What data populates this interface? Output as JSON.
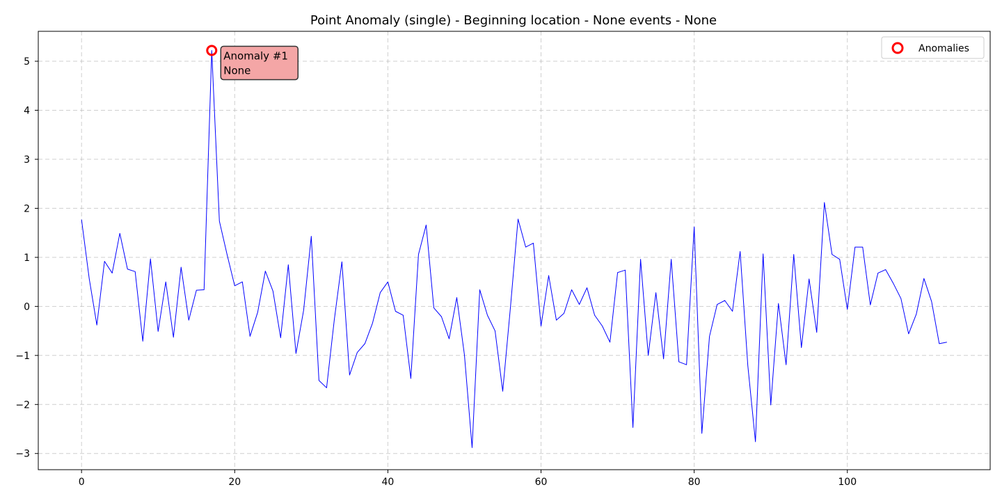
{
  "chart_data": {
    "type": "line",
    "title": "Point Anomaly (single) - Beginning location - None events - None",
    "xlabel": "",
    "ylabel": "",
    "xlim": [
      -5.65,
      118.65
    ],
    "ylim": [
      -3.33,
      5.61
    ],
    "x_ticks": [
      0,
      20,
      40,
      60,
      80,
      100
    ],
    "y_ticks": [
      -3,
      -2,
      -1,
      0,
      1,
      2,
      3,
      4,
      5
    ],
    "grid": true,
    "legend": {
      "placement": "top-right",
      "entries": [
        "Anomalies"
      ]
    },
    "series": [
      {
        "color": "#0000ff",
        "values": [
          1.77,
          0.57,
          -0.38,
          0.92,
          0.68,
          1.49,
          0.76,
          0.71,
          -0.71,
          0.97,
          -0.51,
          0.5,
          -0.63,
          0.8,
          -0.28,
          0.33,
          0.34,
          5.22,
          1.74,
          1.06,
          0.42,
          0.5,
          -0.61,
          -0.12,
          0.72,
          0.31,
          -0.64,
          0.85,
          -0.96,
          -0.08,
          1.43,
          -1.51,
          -1.66,
          -0.28,
          0.91,
          -1.4,
          -0.94,
          -0.76,
          -0.34,
          0.28,
          0.5,
          -0.1,
          -0.18,
          -1.47,
          1.06,
          1.66,
          -0.03,
          -0.21,
          -0.66,
          0.18,
          -0.99,
          -2.88,
          0.34,
          -0.18,
          -0.5,
          -1.73,
          -0.03,
          1.78,
          1.21,
          1.29,
          -0.4,
          0.63,
          -0.28,
          -0.14,
          0.34,
          0.04,
          0.38,
          -0.18,
          -0.4,
          -0.73,
          0.69,
          0.74,
          -2.47,
          0.96,
          -1.0,
          0.28,
          -1.07,
          0.96,
          -1.13,
          -1.19,
          1.62,
          -2.59,
          -0.61,
          0.04,
          0.12,
          -0.1,
          1.12,
          -1.2,
          -2.76,
          1.07,
          -2.01,
          0.06,
          -1.19,
          1.06,
          -0.84,
          0.56,
          -0.53,
          2.12,
          1.06,
          0.96,
          -0.06,
          1.21,
          1.21,
          0.03,
          0.68,
          0.75,
          0.47,
          0.16,
          -0.56,
          -0.16,
          0.57,
          0.1,
          -0.76,
          -0.73
        ]
      }
    ],
    "anomalies": [
      {
        "x": 17,
        "y": 5.22,
        "label_line1": "Anomaly #1",
        "label_line2": "None"
      }
    ],
    "colors": {
      "line": "#0000ff",
      "anomaly_marker": "#ff0000",
      "annotation_fill": "#f4a6a6",
      "annotation_border": "#333333"
    }
  }
}
